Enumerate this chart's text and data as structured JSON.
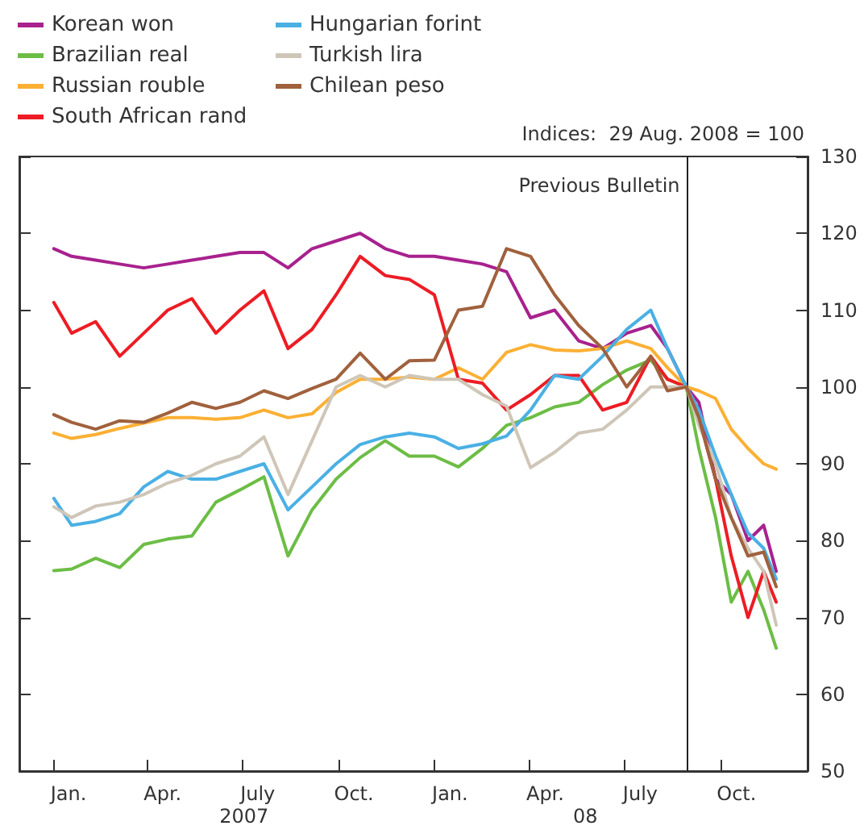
{
  "chart_data": {
    "type": "line",
    "annotations": [
      "Indices:  29 Aug. 2008 = 100",
      "2007",
      "08"
    ],
    "x": [
      "2007-01-02",
      "2007-01-19",
      "2007-02-11",
      "2007-03-06",
      "2007-03-29",
      "2007-04-21",
      "2007-05-14",
      "2007-06-06",
      "2007-06-29",
      "2007-07-22",
      "2007-08-14",
      "2007-09-06",
      "2007-09-29",
      "2007-10-22",
      "2007-11-15",
      "2007-12-08",
      "2008-01-01",
      "2008-01-24",
      "2008-02-16",
      "2008-03-10",
      "2008-04-02",
      "2008-04-25",
      "2008-05-18",
      "2008-06-10",
      "2008-07-03",
      "2008-07-26",
      "2008-08-11",
      "2008-08-29",
      "2008-09-10",
      "2008-09-26",
      "2008-10-11",
      "2008-10-27",
      "2008-11-11",
      "2008-11-23"
    ],
    "series": [
      {
        "name": "Korean won",
        "color": "#a8218e",
        "values": [
          118,
          117,
          116.5,
          116,
          115.5,
          116,
          116.5,
          117,
          117.5,
          117.5,
          115.5,
          118,
          119,
          120,
          118,
          117,
          117,
          116.5,
          116,
          115,
          109,
          110,
          106,
          105,
          107,
          108,
          105,
          100,
          98,
          88,
          86,
          80,
          82,
          76
        ]
      },
      {
        "name": "Brazilian real",
        "color": "#6cbd45",
        "values": [
          76.1,
          76.3,
          77.7,
          76.5,
          79.5,
          80.2,
          80.6,
          85,
          86.6,
          88.3,
          78,
          84,
          88,
          90.8,
          93,
          91,
          91,
          89.6,
          92,
          95,
          96,
          97.4,
          98,
          100.3,
          102.2,
          103.5,
          101,
          100,
          92,
          83,
          72,
          76,
          71,
          66
        ]
      },
      {
        "name": "Russian rouble",
        "color": "#fbb034",
        "values": [
          94,
          93.3,
          93.8,
          94.6,
          95.3,
          96,
          96,
          95.8,
          96,
          97,
          96,
          96.5,
          99.3,
          101,
          101,
          101.3,
          101,
          102.5,
          101,
          104.5,
          105.5,
          104.8,
          104.7,
          105,
          106,
          105,
          102.5,
          100,
          99.5,
          98.5,
          94.5,
          92,
          90,
          89.3
        ]
      },
      {
        "name": "South African rand",
        "color": "#ed1c24",
        "values": [
          111,
          107,
          108.5,
          104,
          107,
          110,
          111.5,
          107,
          110,
          112.5,
          105,
          107.5,
          112,
          117,
          114.5,
          114,
          112,
          101,
          100.5,
          97,
          99,
          101.5,
          101.5,
          97,
          98,
          104,
          101,
          100,
          96,
          88,
          78,
          70,
          76,
          72
        ]
      },
      {
        "name": "Hungarian forint",
        "color": "#4ab0e4",
        "values": [
          85.5,
          82,
          82.5,
          83.5,
          87,
          89,
          88,
          88,
          89,
          90,
          84,
          87,
          90,
          92.5,
          93.5,
          94,
          93.5,
          92,
          92.6,
          93.6,
          97,
          101.5,
          101,
          104,
          107.5,
          110,
          105,
          100,
          97,
          91,
          86,
          81,
          79,
          75
        ]
      },
      {
        "name": "Turkish lira",
        "color": "#cfc6b8",
        "values": [
          84.4,
          83,
          84.5,
          85,
          86,
          87.5,
          88.5,
          90,
          91,
          93.5,
          86,
          93,
          100,
          101.5,
          100,
          101.5,
          101,
          101,
          99,
          97.5,
          89.5,
          91.5,
          94,
          94.5,
          97,
          100,
          100,
          100,
          95,
          90,
          83,
          79,
          76,
          69
        ]
      },
      {
        "name": "Chilean peso",
        "color": "#a0613d",
        "values": [
          96.4,
          95.4,
          94.5,
          95.6,
          95.4,
          96.6,
          98,
          97.2,
          98,
          99.5,
          98.5,
          99.8,
          101,
          104.4,
          101,
          103.4,
          103.5,
          110,
          110.5,
          118,
          117,
          112,
          108,
          105,
          100,
          104,
          99.5,
          100,
          96,
          88,
          83,
          78,
          78.5,
          74
        ]
      }
    ],
    "xlim": [
      "2006-11-30",
      "2008-12-23"
    ],
    "xticks": [
      {
        "value": "2007-01-01",
        "label": null
      },
      {
        "value": "2007-01-16",
        "label": "Jan."
      },
      {
        "value": "2007-04-01",
        "label": null
      },
      {
        "value": "2007-04-16",
        "label": "Apr."
      },
      {
        "value": "2007-07-01",
        "label": null
      },
      {
        "value": "2007-07-16",
        "label": "July"
      },
      {
        "value": "2007-10-01",
        "label": null
      },
      {
        "value": "2007-10-16",
        "label": "Oct."
      },
      {
        "value": "2008-01-01",
        "label": null
      },
      {
        "value": "2008-01-16",
        "label": "Jan."
      },
      {
        "value": "2008-04-01",
        "label": null
      },
      {
        "value": "2008-04-16",
        "label": "Apr."
      },
      {
        "value": "2008-07-01",
        "label": null
      },
      {
        "value": "2008-07-16",
        "label": "July"
      },
      {
        "value": "2008-10-01",
        "label": null
      },
      {
        "value": "2008-10-16",
        "label": "Oct."
      }
    ],
    "ylim": [
      50,
      130
    ],
    "yticks": [
      50,
      60,
      70,
      80,
      90,
      100,
      110,
      120,
      130
    ],
    "ref_lines": [
      {
        "axis": "x",
        "value": "2008-08-29",
        "label": "Previous Bulletin"
      }
    ],
    "legend": "top left",
    "grid": false,
    "marker": "none",
    "line_style": "solid"
  }
}
